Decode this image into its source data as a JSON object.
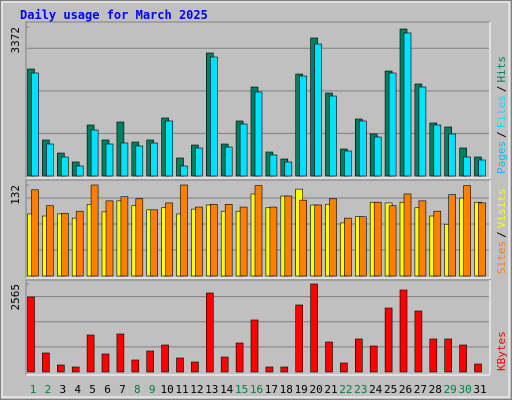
{
  "chart_data": [
    {
      "type": "bar",
      "title": "Daily usage for March 2025",
      "legend_separator": "/",
      "ylim": [
        0,
        3372
      ],
      "yticks": [
        3372
      ],
      "series": [
        {
          "name": "Hits",
          "color": "#008060",
          "values": [
            2421,
            815,
            520,
            317,
            1154,
            815,
            1222,
            769,
            815,
            1313,
            407,
            701,
            2784,
            724,
            1245,
            2014,
            543,
            385,
            2308,
            3123,
            1878,
            611,
            1290,
            951,
            2376,
            3327,
            2082,
            1200,
            1109,
            634,
            430
          ]
        },
        {
          "name": "Files",
          "color": "#00e0ff",
          "values": [
            2331,
            724,
            430,
            226,
            1041,
            724,
            747,
            679,
            747,
            1245,
            226,
            634,
            2693,
            656,
            1177,
            1901,
            475,
            317,
            2263,
            2987,
            1810,
            566,
            1245,
            883,
            2331,
            3237,
            2014,
            1154,
            951,
            430,
            362
          ]
        },
        {
          "name": "Pages",
          "color": "#00c0ff"
        }
      ]
    },
    {
      "type": "bar",
      "ylim": [
        0,
        132
      ],
      "yticks": [
        132
      ],
      "series": [
        {
          "name": "Visits",
          "color": "#ffff00",
          "values": [
            90,
            87,
            90,
            84,
            104,
            93,
            109,
            102,
            96,
            99,
            90,
            97,
            103,
            94,
            94,
            119,
            99,
            116,
            126,
            103,
            104,
            77,
            86,
            107,
            106,
            107,
            99,
            87,
            75,
            113,
            107
          ]
        },
        {
          "name": "Sites",
          "color": "#ff8000",
          "values": [
            125,
            102,
            91,
            94,
            132,
            109,
            115,
            112,
            96,
            106,
            132,
            100,
            104,
            104,
            100,
            131,
            100,
            116,
            110,
            103,
            112,
            84,
            86,
            107,
            102,
            119,
            109,
            94,
            118,
            131,
            106
          ]
        }
      ]
    },
    {
      "type": "bar",
      "ylim": [
        0,
        2565
      ],
      "yticks": [
        2565
      ],
      "categories": [
        "1",
        "2",
        "3",
        "4",
        "5",
        "6",
        "7",
        "8",
        "9",
        "10",
        "11",
        "12",
        "13",
        "14",
        "15",
        "16",
        "17",
        "18",
        "19",
        "20",
        "21",
        "22",
        "23",
        "24",
        "25",
        "26",
        "27",
        "28",
        "29",
        "30",
        "31"
      ],
      "category_colors": [
        "#008040",
        "#008040",
        "#000000",
        "#000000",
        "#000000",
        "#000000",
        "#000000",
        "#008040",
        "#008040",
        "#000000",
        "#000000",
        "#000000",
        "#000000",
        "#000000",
        "#008040",
        "#008040",
        "#000000",
        "#000000",
        "#000000",
        "#000000",
        "#000000",
        "#008040",
        "#008040",
        "#000000",
        "#000000",
        "#000000",
        "#000000",
        "#000000",
        "#008040",
        "#008040",
        "#000000"
      ],
      "series": [
        {
          "name": "KBytes",
          "color": "#ff0000",
          "values": [
            2186,
            554,
            204,
            146,
            1078,
            525,
            1108,
            350,
            612,
            787,
            408,
            291,
            2303,
            437,
            845,
            1516,
            146,
            146,
            1953,
            2565,
            874,
            262,
            962,
            758,
            1865,
            2390,
            1778,
            962,
            962,
            787,
            233
          ]
        }
      ]
    }
  ]
}
